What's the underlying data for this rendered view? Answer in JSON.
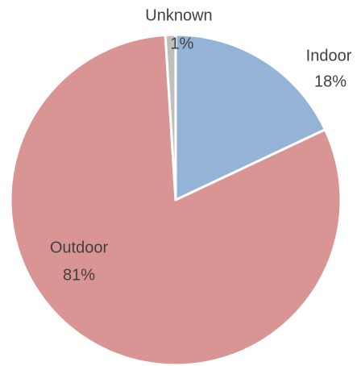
{
  "chart_data": {
    "type": "pie",
    "categories": [
      "Indoor",
      "Outdoor",
      "Unknown"
    ],
    "values": [
      18,
      81,
      1
    ],
    "value_labels": [
      "18%",
      "81%",
      "1%"
    ],
    "colors": [
      "#95b3d7",
      "#d99594",
      "#bfbfbf"
    ]
  }
}
